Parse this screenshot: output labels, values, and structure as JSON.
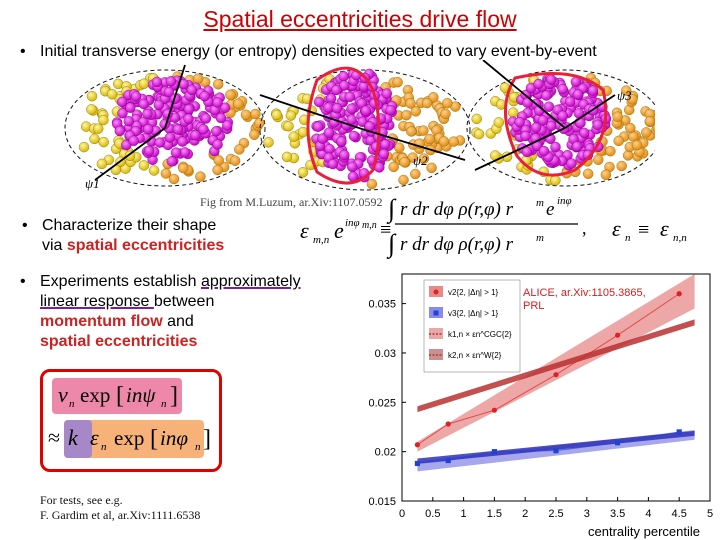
{
  "slide": {
    "title": "Spatial eccentricities drive flow",
    "bullet1": "Initial transverse energy (or entropy) densities expected to vary event-by-event",
    "fig_caption": "Fig from M.Luzum, ar.Xiv:1107.0592",
    "bullet2_line1": "Characterize their shape",
    "bullet2_line2_prefix": "via ",
    "bullet2_line2_red": "spatial eccentricities",
    "bullet3_part1": "Experiments establish ",
    "bullet3_ul1": "approximately",
    "bullet3_ul2": "linear response ",
    "bullet3_part2": "between",
    "bullet3_red1": "momentum flow",
    "bullet3_and": " and",
    "bullet3_red2": "spatial eccentricities",
    "note_line1": "For tests, see e.g.",
    "note_line2": "F. Gardim et al,  ar.Xiv:1111.6538",
    "psi_labels": [
      "ψ1",
      "ψ2",
      "ψ3"
    ]
  },
  "chart_data": {
    "type": "line",
    "annotation": "ALICE, ar.Xiv:1105.3865, PRL",
    "xlabel": "centrality percentile",
    "ylabel": "",
    "xlim": [
      0,
      5
    ],
    "ylim": [
      0.015,
      0.038
    ],
    "x_ticks": [
      "0",
      "0.5",
      "1",
      "1.5",
      "2",
      "2.5",
      "3",
      "3.5",
      "4",
      "4.5",
      "5"
    ],
    "y_ticks": [
      "0.015",
      "0.02",
      "0.025",
      "0.03",
      "0.035"
    ],
    "legend": [
      "v2{2, |Δη| > 1}",
      "v3{2, |Δη| > 1}",
      "k1,n × εn^CGC{2}",
      "k2,n × εn^W{2}"
    ],
    "series": [
      {
        "name": "v2{2, |Δη| > 1}",
        "color": "#dd2222",
        "marker": "circle",
        "x": [
          0.25,
          0.75,
          1.5,
          2.5,
          3.5,
          4.5
        ],
        "y": [
          0.0207,
          0.0228,
          0.0242,
          0.0278,
          0.0318,
          0.036
        ]
      },
      {
        "name": "v3{2, |Δη| > 1}",
        "color": "#2244cc",
        "marker": "square",
        "x": [
          0.25,
          0.75,
          1.5,
          2.5,
          3.5,
          4.5
        ],
        "y": [
          0.0188,
          0.0191,
          0.02,
          0.0201,
          0.0209,
          0.022
        ]
      }
    ],
    "bands": [
      {
        "name": "v2 CGC band",
        "color": "#e88a8a",
        "x": [
          0.25,
          4.75
        ],
        "lo": [
          0.02,
          0.0345
        ],
        "hi": [
          0.021,
          0.038
        ]
      },
      {
        "name": "v3 CGC band",
        "color": "#8a8ae8",
        "x": [
          0.25,
          4.75
        ],
        "lo": [
          0.018,
          0.0212
        ],
        "hi": [
          0.019,
          0.0222
        ]
      },
      {
        "name": "v2 Glauber band",
        "color": "#b83030",
        "x": [
          0.25,
          4.75
        ],
        "lo": [
          0.024,
          0.0328
        ],
        "hi": [
          0.0246,
          0.0334
        ]
      },
      {
        "name": "v3 Glauber band",
        "color": "#3030b8",
        "x": [
          0.25,
          4.75
        ],
        "lo": [
          0.0188,
          0.0216
        ],
        "hi": [
          0.0193,
          0.0221
        ]
      }
    ]
  }
}
